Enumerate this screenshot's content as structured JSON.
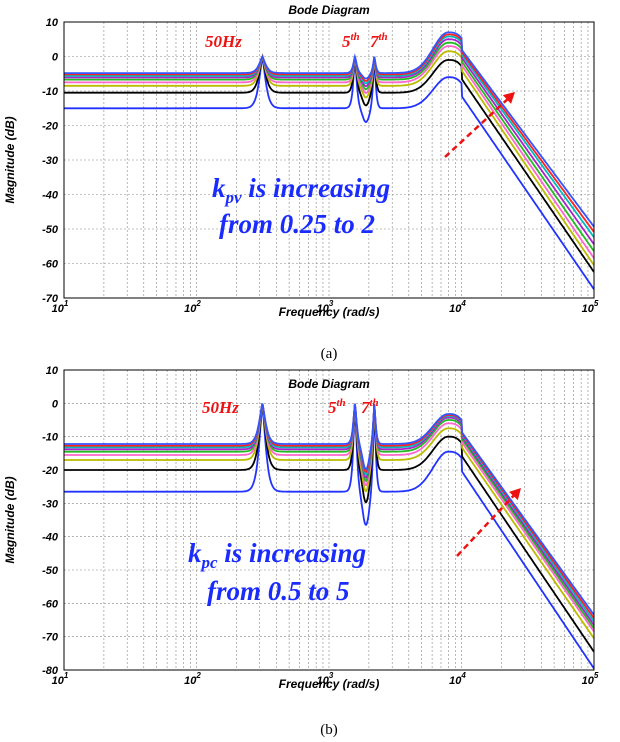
{
  "chart_data": [
    {
      "type": "line",
      "title": "Bode Diagram",
      "xlabel": "Frequency  (rad/s)",
      "ylabel": "Magnitude (dB)",
      "xscale": "log",
      "xlim": [
        10,
        100000
      ],
      "ylim": [
        -70,
        10
      ],
      "x_ticks": [
        {
          "base": "10",
          "exp": "1"
        },
        {
          "base": "10",
          "exp": "2"
        },
        {
          "base": "10",
          "exp": "3"
        },
        {
          "base": "10",
          "exp": "4"
        },
        {
          "base": "10",
          "exp": "5"
        }
      ],
      "y_ticks": [
        "10",
        "0",
        "-10",
        "-20",
        "-30",
        "-40",
        "-50",
        "-60",
        "-70"
      ],
      "grid": "dotted major and minor",
      "caption": "(a)",
      "annotations": {
        "fundamental": "50Hz",
        "h5": {
          "main": "5",
          "sup": "th"
        },
        "h7": {
          "main": "7",
          "sup": "th"
        },
        "line1_main": "k",
        "line1_sub": "pv",
        "line1_rest": " is increasing",
        "line2": "from 0.25 to 2"
      },
      "series": [
        {
          "color": "#2233ff",
          "low": -15,
          "peak": -6,
          "fall_end": -66
        },
        {
          "color": "#000000",
          "low": -10.5,
          "peak": -1,
          "fall_end": -61
        },
        {
          "color": "#bbbb00",
          "low": -8.5,
          "peak": 1.5,
          "fall_end": -59
        },
        {
          "color": "#ff66cc",
          "low": -7.5,
          "peak": 3,
          "fall_end": -57
        },
        {
          "color": "#22bb22",
          "low": -6.7,
          "peak": 4,
          "fall_end": -55
        },
        {
          "color": "#aa22cc",
          "low": -6.1,
          "peak": 5,
          "fall_end": -53
        },
        {
          "color": "#00bbbb",
          "low": -5.6,
          "peak": 5.8,
          "fall_end": -51
        },
        {
          "color": "#ff2222",
          "low": -5.2,
          "peak": 6.4,
          "fall_end": -49.5
        },
        {
          "color": "#3355ff",
          "low": -4.8,
          "peak": 7,
          "fall_end": -48
        }
      ]
    },
    {
      "type": "line",
      "title": "Bode Diagram",
      "xlabel": "Frequency  (rad/s)",
      "ylabel": "Magnitude (dB)",
      "xscale": "log",
      "xlim": [
        10,
        100000
      ],
      "ylim": [
        -80,
        10
      ],
      "x_ticks": [
        {
          "base": "10",
          "exp": "1"
        },
        {
          "base": "10",
          "exp": "2"
        },
        {
          "base": "10",
          "exp": "3"
        },
        {
          "base": "10",
          "exp": "4"
        },
        {
          "base": "10",
          "exp": "5"
        }
      ],
      "y_ticks": [
        "10",
        "0",
        "-10",
        "-20",
        "-30",
        "-40",
        "-50",
        "-60",
        "-70",
        "-80"
      ],
      "grid": "dotted major and minor",
      "caption": "(b)",
      "annotations": {
        "fundamental": "50Hz",
        "h5": {
          "main": "5",
          "sup": "th"
        },
        "h7": {
          "main": "7",
          "sup": "th"
        },
        "line1_main": "k",
        "line1_sub": "pc",
        "line1_rest": " is increasing",
        "line2": "from 0.5 to 5"
      },
      "series": [
        {
          "color": "#2233ff",
          "low": -26.5,
          "peak": -14.5,
          "fall_end": -78
        },
        {
          "color": "#000000",
          "low": -20,
          "peak": -10,
          "fall_end": -73
        },
        {
          "color": "#bbbb00",
          "low": -17,
          "peak": -7.5,
          "fall_end": -69
        },
        {
          "color": "#ff66cc",
          "low": -15.5,
          "peak": -6,
          "fall_end": -67
        },
        {
          "color": "#22bb22",
          "low": -14.5,
          "peak": -5,
          "fall_end": -66
        },
        {
          "color": "#aa22cc",
          "low": -13.8,
          "peak": -4.3,
          "fall_end": -65
        },
        {
          "color": "#00bbbb",
          "low": -13.2,
          "peak": -3.8,
          "fall_end": -64
        },
        {
          "color": "#ff2222",
          "low": -12.7,
          "peak": -3.5,
          "fall_end": -63
        },
        {
          "color": "#3355ff",
          "low": -12.2,
          "peak": -3.2,
          "fall_end": -62
        }
      ]
    }
  ]
}
